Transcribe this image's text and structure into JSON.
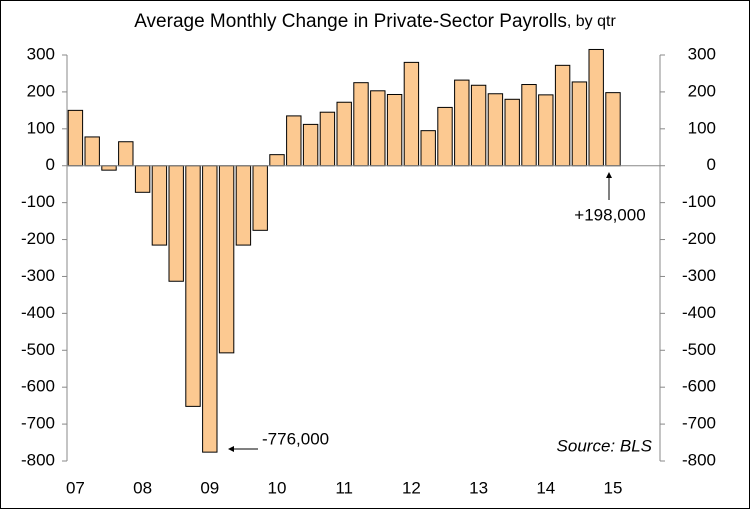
{
  "chart_data": {
    "type": "bar",
    "title": "Average Monthly Change in Private-Sector Payrolls",
    "subtitle": ", by qtr",
    "categories": [
      "07",
      null,
      null,
      null,
      "08",
      null,
      null,
      null,
      "09",
      null,
      null,
      null,
      "10",
      null,
      null,
      null,
      "11",
      null,
      null,
      null,
      "12",
      null,
      null,
      null,
      "13",
      null,
      null,
      null,
      "14",
      null,
      null,
      null,
      "15"
    ],
    "values": [
      150,
      78,
      -12,
      65,
      -72,
      -215,
      -313,
      -652,
      -776,
      -507,
      -215,
      -175,
      30,
      135,
      112,
      145,
      172,
      225,
      203,
      193,
      280,
      95,
      158,
      232,
      218,
      195,
      180,
      220,
      192,
      272,
      227,
      315,
      198
    ],
    "color": "#fcc991",
    "ylim": [
      -800,
      300
    ],
    "yticks": [
      -800,
      -700,
      -600,
      -500,
      -400,
      -300,
      -200,
      -100,
      0,
      100,
      200,
      300
    ],
    "y2lim": [
      -800,
      300
    ],
    "y2ticks": [
      -800,
      -700,
      -600,
      -500,
      -400,
      -300,
      -200,
      -100,
      0,
      100,
      200,
      300
    ],
    "annotations": [
      "-776,000",
      "+198,000"
    ],
    "source": "Source: BLS"
  }
}
